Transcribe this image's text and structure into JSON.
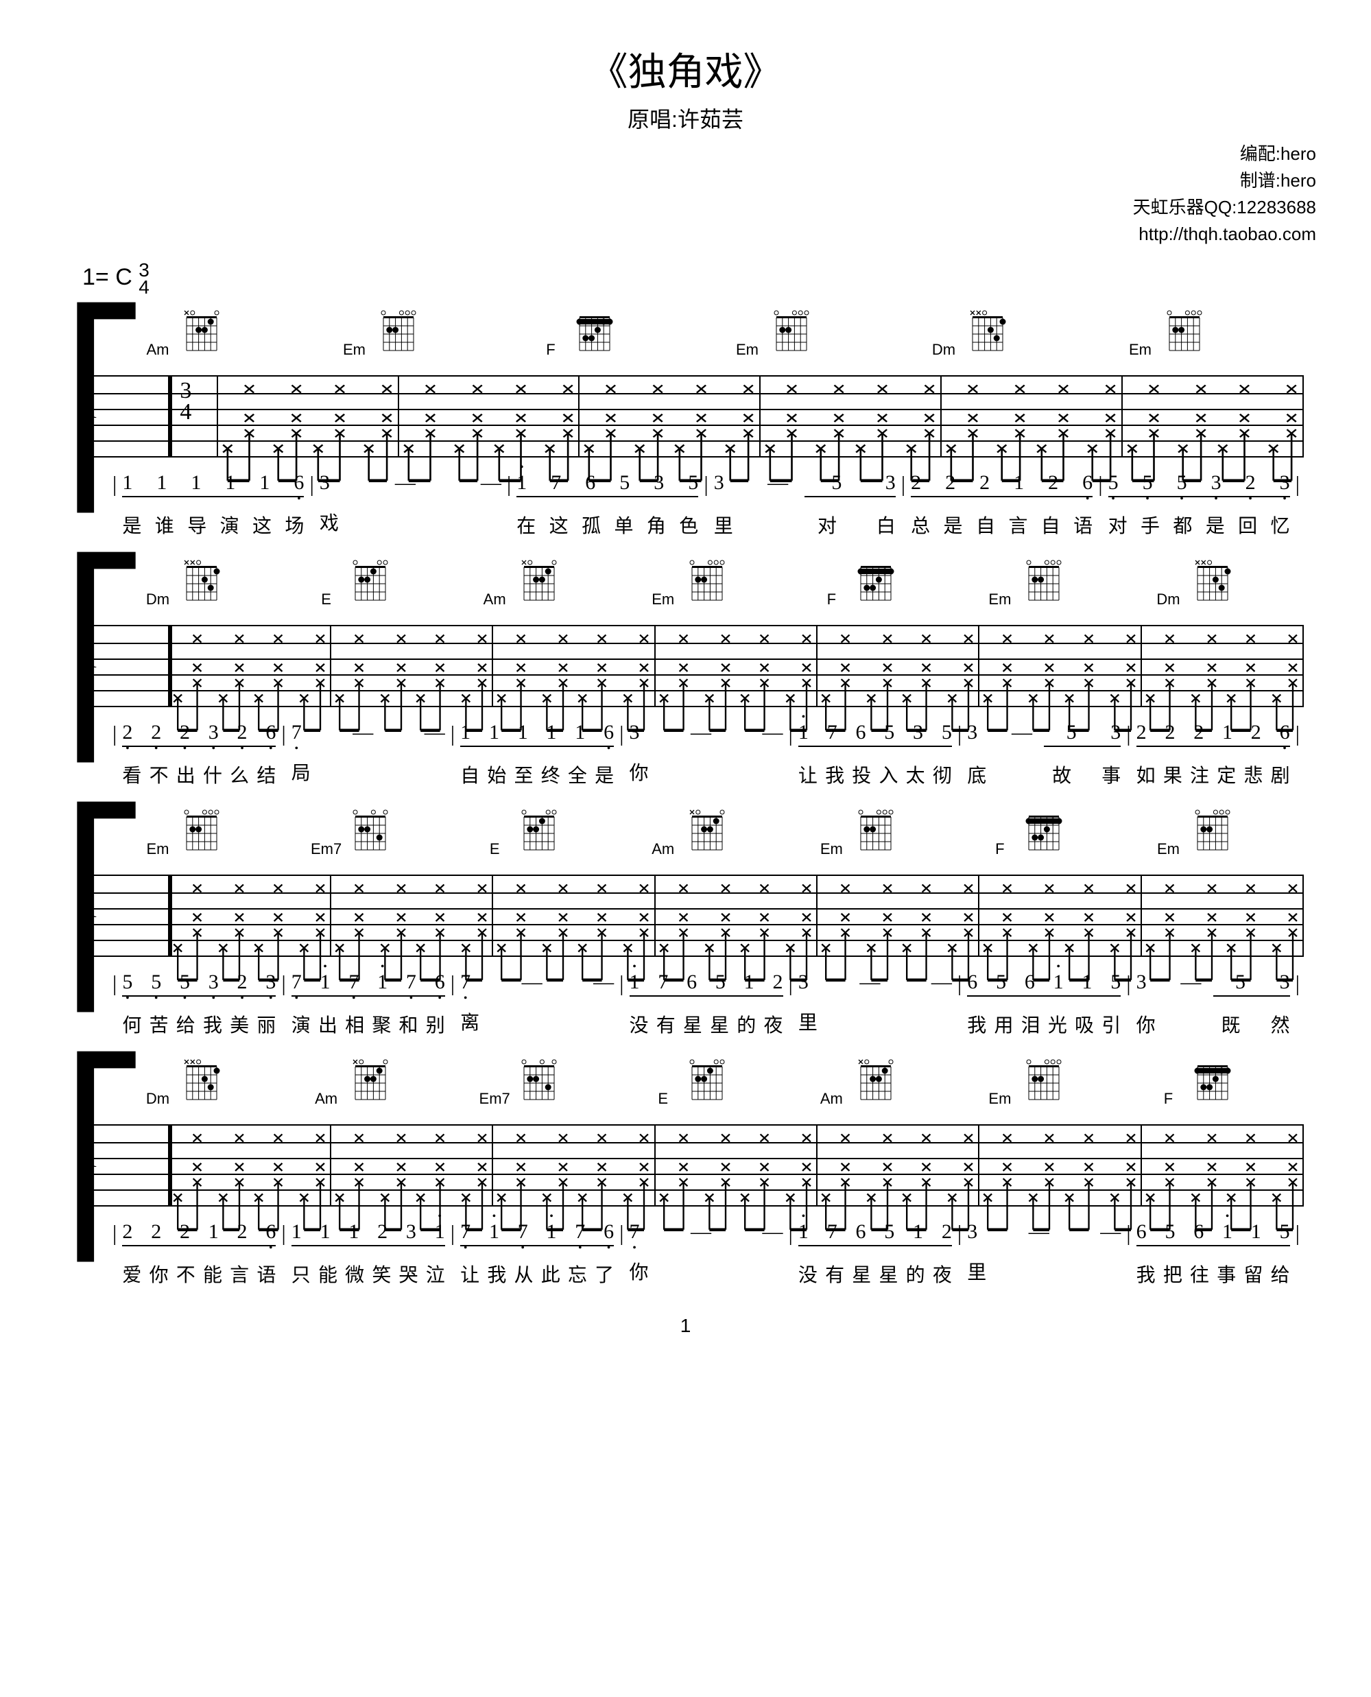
{
  "title": "《独角戏》",
  "subtitle_label": "原唱:",
  "artist": "许茹芸",
  "credits": {
    "arr_label": "编配:",
    "arr": "hero",
    "tab_label": "制谱:",
    "tab": "hero",
    "shop": "天虹乐器QQ:12283688",
    "url": "http://thqh.taobao.com"
  },
  "key": "1= C",
  "time_num": "3",
  "time_den": "4",
  "tab_label_t": "T",
  "tab_label_a": "A",
  "tab_label_b": "B",
  "time_sig_3": "3",
  "time_sig_4": "4",
  "systems": [
    {
      "chords": [
        "Am",
        "Em",
        "F",
        "Em",
        "Dm",
        "Em"
      ],
      "chord_pos": [
        0,
        1,
        2,
        3,
        4,
        5
      ],
      "measures": [
        {
          "notes": [
            "1",
            "1",
            "1",
            "1",
            "1",
            "6̣"
          ],
          "under": "111116",
          "lyrics": [
            "是",
            "谁",
            "导",
            "演",
            "这",
            "场"
          ]
        },
        {
          "notes": [
            "3",
            "—",
            "—"
          ],
          "lyrics": [
            "戏",
            "",
            ""
          ]
        },
        {
          "notes": [
            "i",
            "7",
            "6",
            "5",
            "3",
            "5"
          ],
          "under": "i76535",
          "lyrics": [
            "在",
            "这",
            "孤",
            "单",
            "角",
            "色"
          ]
        },
        {
          "notes": [
            "3",
            "—",
            "5",
            "3"
          ],
          "under_end": "53",
          "lyrics": [
            "里",
            "",
            "对",
            "白"
          ]
        },
        {
          "notes": [
            "2",
            "2",
            "2",
            "1",
            "2",
            "6̣"
          ],
          "under": "222126",
          "lyrics": [
            "总",
            "是",
            "自",
            "言",
            "自",
            "语"
          ]
        },
        {
          "notes": [
            "5̣",
            "5̣",
            "5̣",
            "3̣",
            "2̣",
            "3̣"
          ],
          "under": "555323",
          "lyrics": [
            "对",
            "手",
            "都",
            "是",
            "回",
            "忆"
          ]
        }
      ]
    },
    {
      "chords": [
        "Dm",
        "E",
        "Am",
        "Em",
        "F",
        "Em",
        "Dm"
      ],
      "chord_pos": [
        0,
        1,
        2,
        3,
        4,
        5,
        6
      ],
      "measures": [
        {
          "notes": [
            "2̣",
            "2̣",
            "2̣",
            "3̣",
            "2̣",
            "6̣"
          ],
          "under": "222326",
          "lyrics": [
            "看",
            "不",
            "出",
            "什",
            "么",
            "结"
          ]
        },
        {
          "notes": [
            "7̣",
            "—",
            "—"
          ],
          "lyrics": [
            "局",
            "",
            ""
          ]
        },
        {
          "notes": [
            "1",
            "1",
            "1",
            "1",
            "1",
            "6̣"
          ],
          "under": "111116",
          "lyrics": [
            "自",
            "始",
            "至",
            "终",
            "全",
            "是"
          ]
        },
        {
          "notes": [
            "3",
            "—",
            "—"
          ],
          "lyrics": [
            "你",
            "",
            ""
          ]
        },
        {
          "notes": [
            "i",
            "7",
            "6",
            "5",
            "3",
            "5"
          ],
          "under": "i76535",
          "lyrics": [
            "让",
            "我",
            "投",
            "入",
            "太",
            "彻"
          ]
        },
        {
          "notes": [
            "3",
            "—",
            "5",
            "3"
          ],
          "under_end": "53",
          "lyrics": [
            "底",
            "",
            "故",
            "事"
          ]
        },
        {
          "notes": [
            "2",
            "2",
            "2",
            "1",
            "2",
            "6̣"
          ],
          "under": "222126",
          "lyrics": [
            "如",
            "果",
            "注",
            "定",
            "悲",
            "剧"
          ]
        }
      ]
    },
    {
      "chords": [
        "Em",
        "Em7",
        "E",
        "Am",
        "Em",
        "F",
        "Em"
      ],
      "chord_pos": [
        0,
        1,
        2,
        3,
        4,
        5,
        6
      ],
      "measures": [
        {
          "notes": [
            "5̣",
            "5̣",
            "5̣",
            "3̣",
            "2̣",
            "3̣"
          ],
          "under": "555323",
          "lyrics": [
            "何",
            "苦",
            "给",
            "我",
            "美",
            "丽"
          ]
        },
        {
          "notes": [
            "7̣",
            "i",
            "7̣",
            "i",
            "7̣",
            "6̣"
          ],
          "under": "7i7i76",
          "lyrics": [
            "演",
            "出",
            "相",
            "聚",
            "和",
            "别"
          ]
        },
        {
          "notes": [
            "7̣",
            "—",
            "—"
          ],
          "lyrics": [
            "离",
            "",
            ""
          ]
        },
        {
          "notes": [
            "i",
            "7",
            "6",
            "5",
            "1",
            "2"
          ],
          "under": "i76512",
          "lyrics": [
            "没",
            "有",
            "星",
            "星",
            "的",
            "夜"
          ]
        },
        {
          "notes": [
            "3",
            "—",
            "—"
          ],
          "lyrics": [
            "里",
            "",
            ""
          ]
        },
        {
          "notes": [
            "6",
            "5",
            "6",
            "i",
            "1",
            "5"
          ],
          "under": "656i15",
          "lyrics": [
            "我",
            "用",
            "泪",
            "光",
            "吸",
            "引"
          ]
        },
        {
          "notes": [
            "3",
            "—",
            "5",
            "3"
          ],
          "under_end": "53",
          "lyrics": [
            "你",
            "",
            "既",
            "然"
          ]
        }
      ]
    },
    {
      "chords": [
        "Dm",
        "Am",
        "Em7",
        "E",
        "Am",
        "Em",
        "F"
      ],
      "chord_pos": [
        0,
        1,
        2,
        3,
        4,
        5,
        6
      ],
      "measures": [
        {
          "notes": [
            "2",
            "2",
            "2",
            "1",
            "2",
            "6̣"
          ],
          "under": "222126",
          "lyrics": [
            "爱",
            "你",
            "不",
            "能",
            "言",
            "语"
          ]
        },
        {
          "notes": [
            "1",
            "1",
            "1",
            "2",
            "3",
            "i"
          ],
          "under": "11123i",
          "lyrics": [
            "只",
            "能",
            "微",
            "笑",
            "哭",
            "泣"
          ]
        },
        {
          "notes": [
            "7̣",
            "i",
            "7̣",
            "i",
            "7̣",
            "6̣"
          ],
          "under": "7i7i76",
          "lyrics": [
            "让",
            "我",
            "从",
            "此",
            "忘",
            "了"
          ]
        },
        {
          "notes": [
            "7̣",
            "—",
            "—"
          ],
          "lyrics": [
            "你",
            "",
            ""
          ]
        },
        {
          "notes": [
            "i",
            "7",
            "6",
            "5",
            "1",
            "2"
          ],
          "under": "i76512",
          "lyrics": [
            "没",
            "有",
            "星",
            "星",
            "的",
            "夜"
          ]
        },
        {
          "notes": [
            "3",
            "—",
            "—"
          ],
          "lyrics": [
            "里",
            "",
            ""
          ]
        },
        {
          "notes": [
            "6",
            "5",
            "6",
            "i",
            "1",
            "5"
          ],
          "under": "656i15",
          "lyrics": [
            "我",
            "把",
            "往",
            "事",
            "留",
            "给"
          ]
        }
      ]
    }
  ],
  "chord_shapes": {
    "Am": {
      "frets": [
        "x",
        "0",
        "2",
        "2",
        "1",
        "0"
      ],
      "openCircles": [
        1,
        5
      ],
      "dots": [
        [
          2,
          2
        ],
        [
          3,
          2
        ],
        [
          4,
          1
        ]
      ],
      "mute": [
        0
      ]
    },
    "Em": {
      "frets": [
        "0",
        "2",
        "2",
        "0",
        "0",
        "0"
      ],
      "openCircles": [
        0,
        3,
        4,
        5
      ],
      "dots": [
        [
          1,
          2
        ],
        [
          2,
          2
        ]
      ],
      "mute": []
    },
    "F": {
      "frets": [
        "1",
        "3",
        "3",
        "2",
        "1",
        "1"
      ],
      "openCircles": [],
      "dots": [
        [
          0,
          1
        ],
        [
          1,
          3
        ],
        [
          2,
          3
        ],
        [
          3,
          2
        ],
        [
          4,
          1
        ],
        [
          5,
          1
        ]
      ],
      "barre": 1,
      "mute": []
    },
    "Dm": {
      "frets": [
        "x",
        "x",
        "0",
        "2",
        "3",
        "1"
      ],
      "openCircles": [
        2
      ],
      "dots": [
        [
          3,
          2
        ],
        [
          4,
          3
        ],
        [
          5,
          1
        ]
      ],
      "mute": [
        0,
        1
      ]
    },
    "E": {
      "frets": [
        "0",
        "2",
        "2",
        "1",
        "0",
        "0"
      ],
      "openCircles": [
        0,
        4,
        5
      ],
      "dots": [
        [
          1,
          2
        ],
        [
          2,
          2
        ],
        [
          3,
          1
        ]
      ],
      "mute": []
    },
    "Em7": {
      "frets": [
        "0",
        "2",
        "2",
        "0",
        "3",
        "0"
      ],
      "openCircles": [
        0,
        3,
        5
      ],
      "dots": [
        [
          1,
          2
        ],
        [
          2,
          2
        ],
        [
          4,
          3
        ]
      ],
      "mute": []
    }
  },
  "page_number": "1"
}
